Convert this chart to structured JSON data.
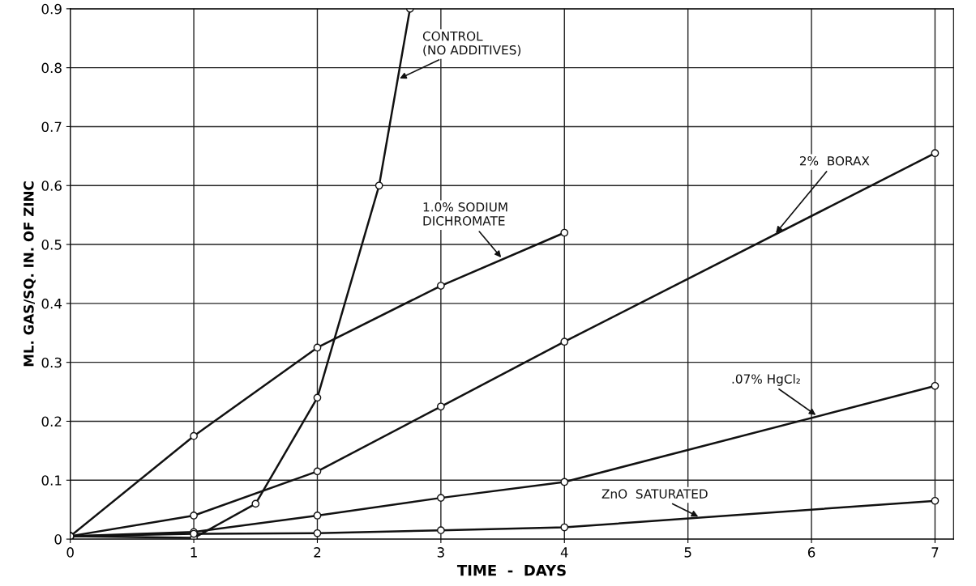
{
  "chart_data": {
    "type": "line",
    "xlabel": "TIME  -  DAYS",
    "ylabel": "ML. GAS/SQ. IN. OF ZINC",
    "xlim": [
      0,
      7.15
    ],
    "ylim": [
      0,
      0.9
    ],
    "xticks": [
      0,
      1,
      2,
      3,
      4,
      5,
      6,
      7
    ],
    "yticks": [
      0,
      0.1,
      0.2,
      0.3,
      0.4,
      0.5,
      0.6,
      0.7,
      0.8,
      0.9
    ],
    "grid": true,
    "legend": false,
    "marker": "circle",
    "line_style": "solid",
    "series": [
      {
        "name": "CONTROL\n(NO ADDITIVES)",
        "color": "#111111",
        "x": [
          0,
          1,
          1.5,
          2,
          2.5,
          2.75
        ],
        "values": [
          0.005,
          0.002,
          0.06,
          0.24,
          0.6,
          0.9
        ]
      },
      {
        "name": "1.0% SODIUM\nDICHROMATE",
        "color": "#111111",
        "x": [
          0,
          1,
          2,
          3,
          4
        ],
        "values": [
          0.005,
          0.175,
          0.325,
          0.43,
          0.52
        ]
      },
      {
        "name": "2%  BORAX",
        "color": "#111111",
        "x": [
          0,
          1,
          2,
          3,
          4,
          7
        ],
        "values": [
          0.005,
          0.04,
          0.115,
          0.225,
          0.335,
          0.655
        ]
      },
      {
        "name": ".07% HgCl₂",
        "color": "#111111",
        "x": [
          0,
          1,
          2,
          3,
          4,
          7
        ],
        "values": [
          0.005,
          0.012,
          0.04,
          0.07,
          0.097,
          0.26
        ]
      },
      {
        "name": "ZnO  SATURATED",
        "color": "#111111",
        "x": [
          0,
          1,
          2,
          3,
          4,
          7
        ],
        "values": [
          0.005,
          0.009,
          0.01,
          0.015,
          0.02,
          0.065
        ]
      }
    ]
  }
}
